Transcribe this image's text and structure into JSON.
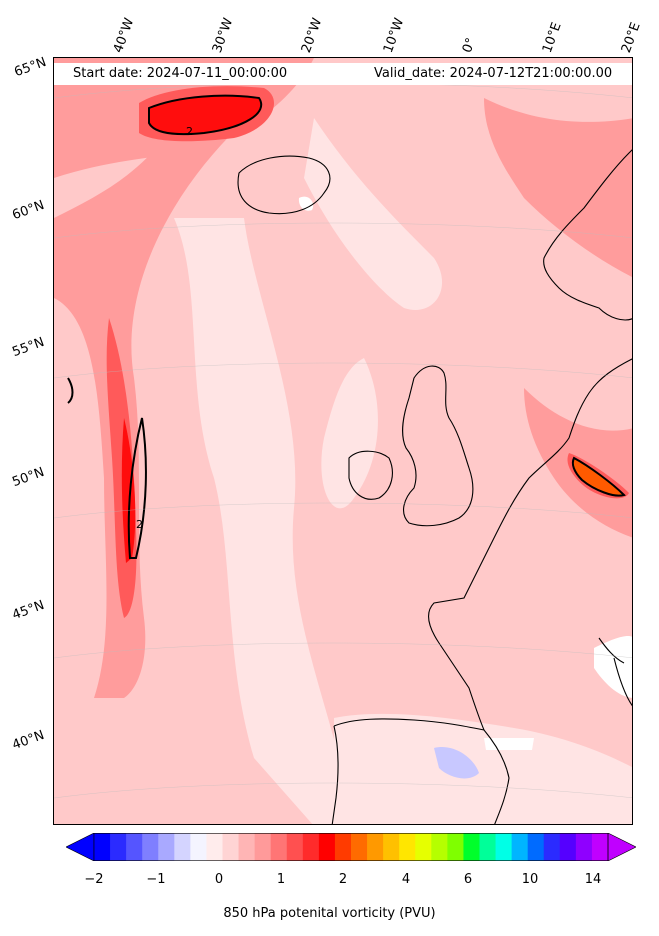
{
  "header": {
    "start_date": "Start date: 2024-07-11_00:00:00",
    "valid_date": "Valid_date: 2024-07-12T21:00:00.00"
  },
  "lon_labels": [
    "40°W",
    "30°W",
    "20°W",
    "10°W",
    "0°",
    "10°E",
    "20°E"
  ],
  "lat_labels": [
    "65°N",
    "60°N",
    "55°N",
    "50°N",
    "45°N",
    "40°N"
  ],
  "contour_label": "2",
  "colorbar": {
    "ticks": [
      "−2",
      "−1",
      "0",
      "1",
      "2",
      "4",
      "6",
      "10",
      "14"
    ],
    "label": "850 hPa potenital vorticity (PVU)",
    "colors": [
      "#0000ff",
      "#2b2bff",
      "#5555ff",
      "#7f7fff",
      "#a9a9ff",
      "#d4d4ff",
      "#f4f4ff",
      "#ffecec",
      "#ffd4d4",
      "#ffb5b5",
      "#ff9a9a",
      "#ff7575",
      "#ff5050",
      "#ff2b2b",
      "#ff0000",
      "#ff3b00",
      "#ff6b00",
      "#ff9900",
      "#ffc000",
      "#ffe600",
      "#e6ff00",
      "#b5ff00",
      "#7fff00",
      "#00ff2b",
      "#00ff99",
      "#00ffe6",
      "#00b5ff",
      "#006bff",
      "#2b2bff",
      "#5500ff",
      "#8f00ff",
      "#c000ff"
    ]
  },
  "map_colors": {
    "background": "#ffc9c9",
    "light": "#ffe4e4",
    "mid": "#ff9c9c",
    "strong": "#ff5a5a",
    "max": "#ff0d0d",
    "orange": "#ff5a00",
    "blue": "#c8c8ff",
    "coast": "#000000"
  }
}
